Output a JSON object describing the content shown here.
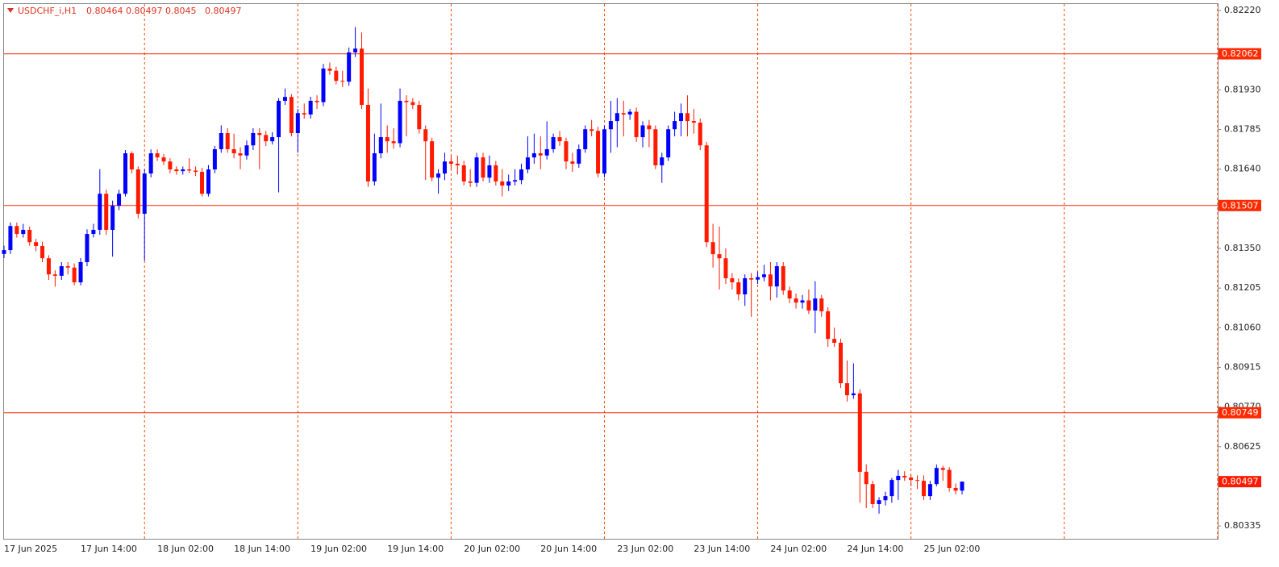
{
  "chart_data": {
    "type": "candlestick",
    "title": "USDCHF_i,H1",
    "categories": [
      "17 Jun 2025",
      null,
      null,
      null,
      null,
      null,
      null,
      null,
      null,
      null,
      null,
      null,
      "17 Jun 14:00",
      null,
      null,
      null,
      null,
      null,
      null,
      null,
      null,
      null,
      null,
      null,
      "18 Jun 02:00",
      null,
      null,
      null,
      null,
      null,
      null,
      null,
      null,
      null,
      null,
      null,
      "18 Jun 14:00",
      null,
      null,
      null,
      null,
      null,
      null,
      null,
      null,
      null,
      null,
      null,
      "19 Jun 02:00",
      null,
      null,
      null,
      null,
      null,
      null,
      null,
      null,
      null,
      null,
      null,
      "19 Jun 14:00",
      null,
      null,
      null,
      null,
      null,
      null,
      null,
      null,
      null,
      null,
      null,
      "20 Jun 02:00",
      null,
      null,
      null,
      null,
      null,
      null,
      null,
      null,
      null,
      null,
      null,
      "20 Jun 14:00",
      null,
      null,
      null,
      null,
      null,
      null,
      null,
      null,
      null,
      null,
      null,
      "23 Jun 02:00",
      null,
      null,
      null,
      null,
      null,
      null,
      null,
      null,
      null,
      null,
      null,
      "23 Jun 14:00",
      null,
      null,
      null,
      null,
      null,
      null,
      null,
      null,
      null,
      null,
      null,
      "24 Jun 02:00",
      null,
      null,
      null,
      null,
      null,
      null,
      null,
      null,
      null,
      null,
      null,
      "24 Jun 14:00",
      null,
      null,
      null,
      null,
      null,
      null,
      null,
      null,
      null,
      null,
      null,
      "25 Jun 02:00",
      null,
      null,
      null,
      null,
      null,
      null
    ],
    "open": [
      0.8133,
      0.81344,
      0.81432,
      0.81403,
      0.81418,
      0.81373,
      0.81359,
      0.81314,
      0.81255,
      0.8125,
      0.81285,
      0.8128,
      0.81226,
      0.813,
      0.81403,
      0.81418,
      0.8155,
      0.81418,
      0.81506,
      0.8155,
      0.81698,
      0.81639,
      0.81477,
      0.81624,
      0.81698,
      0.81683,
      0.81668,
      0.81639,
      0.81633,
      0.81639,
      0.81635,
      0.8163,
      0.8155,
      0.81639,
      0.81713,
      0.81772,
      0.81713,
      0.81698,
      0.8169,
      0.81727,
      0.81772,
      0.81765,
      0.81742,
      0.81757,
      0.8189,
      0.81904,
      0.81772,
      0.81845,
      0.8184,
      0.8189,
      0.81885,
      0.82008,
      0.82,
      0.81963,
      0.8196,
      0.82067,
      0.82081,
      0.81875,
      0.81595,
      0.81698,
      0.81757,
      0.81742,
      0.81735,
      0.8189,
      0.81885,
      0.81875,
      0.81786,
      0.81742,
      0.81609,
      0.81624,
      0.81668,
      0.8166,
      0.81654,
      0.81595,
      0.8159,
      0.81683,
      0.81609,
      0.81654,
      0.81595,
      0.8158,
      0.81595,
      0.816,
      0.81639,
      0.81683,
      0.81698,
      0.8169,
      0.81713,
      0.81757,
      0.81742,
      0.81668,
      0.8166,
      0.81713,
      0.81786,
      0.8178,
      0.81624,
      0.81786,
      0.81816,
      0.81845,
      0.8184,
      0.8185,
      0.81757,
      0.818,
      0.81786,
      0.81654,
      0.81683,
      0.81786,
      0.81816,
      0.81845,
      0.81816,
      0.8181,
      0.81727,
      0.81373,
      0.81329,
      0.81314,
      0.81241,
      0.81226,
      0.81182,
      0.81241,
      0.81236,
      0.81245,
      0.81255,
      0.81211,
      0.81285,
      0.81196,
      0.81167,
      0.81152,
      0.8116,
      0.81123,
      0.81167,
      0.8112,
      0.81019,
      0.81005,
      0.80857,
      0.80813,
      0.8082,
      0.80533,
      0.80488,
      0.80415,
      0.80429,
      0.80444,
      0.80503,
      0.80518,
      0.80512,
      0.80503,
      0.805,
      0.80444,
      0.80488,
      0.80547,
      0.8054,
      0.80474,
      0.80464
    ],
    "high": [
      0.8136,
      0.81445,
      0.81445,
      0.8144,
      0.8143,
      0.81385,
      0.81375,
      0.81325,
      0.8127,
      0.813,
      0.813,
      0.81295,
      0.81315,
      0.8142,
      0.8144,
      0.8164,
      0.81565,
      0.81525,
      0.81565,
      0.8171,
      0.81705,
      0.8165,
      0.8164,
      0.81712,
      0.81712,
      0.81695,
      0.8168,
      0.8165,
      0.8165,
      0.8168,
      0.8165,
      0.81645,
      0.81655,
      0.81725,
      0.818,
      0.8179,
      0.8177,
      0.8172,
      0.81745,
      0.8179,
      0.8179,
      0.8178,
      0.81775,
      0.819,
      0.81935,
      0.81915,
      0.8186,
      0.8188,
      0.81905,
      0.8191,
      0.82025,
      0.8203,
      0.82015,
      0.82,
      0.82085,
      0.8216,
      0.8214,
      0.81935,
      0.8177,
      0.8188,
      0.818,
      0.8179,
      0.81935,
      0.8191,
      0.819,
      0.8189,
      0.818,
      0.81755,
      0.8164,
      0.817,
      0.8169,
      0.8169,
      0.8167,
      0.8164,
      0.817,
      0.817,
      0.8169,
      0.8167,
      0.8164,
      0.8162,
      0.8164,
      0.8166,
      0.8176,
      0.8177,
      0.8176,
      0.81815,
      0.8177,
      0.8178,
      0.81755,
      0.817,
      0.8173,
      0.818,
      0.8182,
      0.81795,
      0.818,
      0.8189,
      0.819,
      0.8189,
      0.8186,
      0.81865,
      0.81815,
      0.8182,
      0.818,
      0.817,
      0.818,
      0.8185,
      0.8188,
      0.8191,
      0.8186,
      0.81825,
      0.8174,
      0.8144,
      0.8143,
      0.8135,
      0.8126,
      0.8124,
      0.81255,
      0.8126,
      0.81265,
      0.8129,
      0.813,
      0.813,
      0.813,
      0.8121,
      0.81185,
      0.8118,
      0.812,
      0.8123,
      0.8118,
      0.81135,
      0.8106,
      0.8102,
      0.8094,
      0.8093,
      0.80835,
      0.8056,
      0.805,
      0.8044,
      0.8046,
      0.8051,
      0.8054,
      0.80535,
      0.8052,
      0.8052,
      0.8052,
      0.805,
      0.8056,
      0.80555,
      0.8055,
      0.8049,
      0.80497
    ],
    "low": [
      0.81315,
      0.8133,
      0.8139,
      0.8139,
      0.8136,
      0.8134,
      0.813,
      0.81235,
      0.8121,
      0.81235,
      0.81255,
      0.81215,
      0.81215,
      0.81285,
      0.8139,
      0.814,
      0.814,
      0.8132,
      0.8149,
      0.8154,
      0.81625,
      0.8146,
      0.81305,
      0.8161,
      0.8167,
      0.81655,
      0.81625,
      0.8162,
      0.8162,
      0.81625,
      0.81615,
      0.8154,
      0.8154,
      0.81625,
      0.817,
      0.817,
      0.8168,
      0.8164,
      0.81675,
      0.8171,
      0.8164,
      0.81725,
      0.8173,
      0.81555,
      0.81875,
      0.8176,
      0.817,
      0.81825,
      0.81825,
      0.8186,
      0.8187,
      0.81985,
      0.8195,
      0.8194,
      0.81945,
      0.8205,
      0.8186,
      0.81575,
      0.8158,
      0.8168,
      0.817,
      0.81715,
      0.8172,
      0.8176,
      0.8186,
      0.8177,
      0.816,
      0.81595,
      0.8155,
      0.816,
      0.8164,
      0.8162,
      0.8158,
      0.81575,
      0.81575,
      0.81595,
      0.8159,
      0.8158,
      0.8154,
      0.8156,
      0.8158,
      0.81585,
      0.81625,
      0.8166,
      0.8164,
      0.81675,
      0.817,
      0.81725,
      0.8164,
      0.8163,
      0.81645,
      0.817,
      0.8176,
      0.8161,
      0.8161,
      0.817,
      0.8172,
      0.8176,
      0.8182,
      0.8174,
      0.8172,
      0.8172,
      0.8164,
      0.8159,
      0.8167,
      0.8176,
      0.8176,
      0.8176,
      0.8177,
      0.8171,
      0.81355,
      0.8128,
      0.812,
      0.8122,
      0.812,
      0.8116,
      0.8114,
      0.811,
      0.8122,
      0.8123,
      0.8116,
      0.8117,
      0.8118,
      0.8115,
      0.8113,
      0.8113,
      0.8111,
      0.8104,
      0.811,
      0.8099,
      0.8099,
      0.8084,
      0.8079,
      0.808,
      0.8042,
      0.804,
      0.804,
      0.8038,
      0.8041,
      0.8042,
      0.8043,
      0.805,
      0.8048,
      0.8047,
      0.8043,
      0.8043,
      0.8048,
      0.805,
      0.8046,
      0.8045,
      0.8045
    ],
    "close": [
      0.81344,
      0.81432,
      0.81403,
      0.81418,
      0.81373,
      0.81359,
      0.81314,
      0.81255,
      0.8125,
      0.81285,
      0.8128,
      0.81226,
      0.813,
      0.81403,
      0.81418,
      0.8155,
      0.81418,
      0.81506,
      0.8155,
      0.81698,
      0.81639,
      0.81477,
      0.81624,
      0.81698,
      0.81683,
      0.81668,
      0.81639,
      0.81633,
      0.81639,
      0.81635,
      0.8163,
      0.8155,
      0.81639,
      0.81713,
      0.81772,
      0.81713,
      0.81698,
      0.8169,
      0.81727,
      0.81772,
      0.81765,
      0.81742,
      0.81757,
      0.8189,
      0.81904,
      0.81772,
      0.81845,
      0.8184,
      0.8189,
      0.81885,
      0.82008,
      0.82,
      0.81963,
      0.8196,
      0.82067,
      0.82081,
      0.81875,
      0.81595,
      0.81698,
      0.81757,
      0.81742,
      0.81735,
      0.8189,
      0.81885,
      0.81875,
      0.81786,
      0.81742,
      0.81609,
      0.81624,
      0.81668,
      0.8166,
      0.81654,
      0.81595,
      0.8159,
      0.81683,
      0.81609,
      0.81654,
      0.81595,
      0.8158,
      0.81595,
      0.816,
      0.81639,
      0.81683,
      0.81698,
      0.8169,
      0.81713,
      0.81757,
      0.81742,
      0.81668,
      0.8166,
      0.81713,
      0.81786,
      0.8178,
      0.81624,
      0.81786,
      0.81816,
      0.81845,
      0.8184,
      0.8185,
      0.81757,
      0.818,
      0.81786,
      0.81654,
      0.81683,
      0.81786,
      0.81816,
      0.81845,
      0.81816,
      0.8181,
      0.81727,
      0.81373,
      0.81329,
      0.81314,
      0.81241,
      0.81226,
      0.81182,
      0.81241,
      0.81236,
      0.81245,
      0.81255,
      0.81211,
      0.81285,
      0.81196,
      0.81167,
      0.81152,
      0.8116,
      0.81123,
      0.81167,
      0.8112,
      0.81019,
      0.81005,
      0.80857,
      0.80813,
      0.8082,
      0.80533,
      0.80488,
      0.80415,
      0.80429,
      0.80444,
      0.80503,
      0.80518,
      0.80512,
      0.80503,
      0.805,
      0.80444,
      0.80488,
      0.80547,
      0.8054,
      0.80474,
      0.80464,
      0.80497
    ],
    "up_color": "#0000ff",
    "down_color": "#ff1a00",
    "hlines": [
      0.82062,
      0.81507,
      0.80749
    ],
    "hline_color": "#ff2a00",
    "separator_color": "#ff4500",
    "ylim": [
      0.80288,
      0.82244
    ],
    "yticks": [
      {
        "value": 0.8222,
        "label": "0.82220"
      },
      {
        "value": 0.8193,
        "label": "0.81930"
      },
      0.81785,
      {
        "value": 0.8164,
        "label": "0.81640"
      },
      {
        "value": 0.8135,
        "label": "0.81350"
      },
      0.81205,
      {
        "value": 0.8106,
        "label": "0.81060"
      },
      0.80915,
      {
        "value": 0.8077,
        "label": "0.80770"
      },
      0.80625,
      0.80335
    ]
  }
}
